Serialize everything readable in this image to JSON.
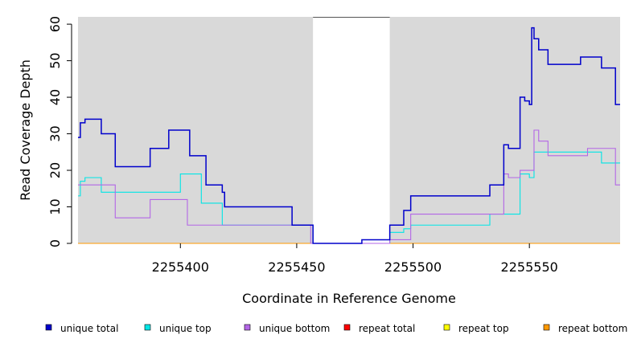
{
  "chart_data": {
    "type": "line",
    "title": "",
    "xlabel": "Coordinate in Reference Genome",
    "ylabel": "Read Coverage Depth",
    "xlim": [
      2255356,
      2255589
    ],
    "ylim": [
      0,
      62
    ],
    "x_ticks": [
      2255400,
      2255450,
      2255500,
      2255550
    ],
    "y_ticks": [
      0,
      10,
      20,
      30,
      40,
      50,
      60
    ],
    "gap_region": [
      2255457,
      2255490
    ],
    "grid": false,
    "legend_position": "bottom",
    "colors": {
      "panel_background": "#d9d9d9",
      "gap_background": "#ffffff"
    },
    "series": [
      {
        "name": "unique total",
        "color": "#0000cc",
        "step": true,
        "x": [
          2255356,
          2255357,
          2255359,
          2255366,
          2255372,
          2255387,
          2255395,
          2255404,
          2255411,
          2255418,
          2255419,
          2255447,
          2255448,
          2255456,
          2255457,
          2255478,
          2255490,
          2255496,
          2255499,
          2255533,
          2255539,
          2255541,
          2255546,
          2255548,
          2255550,
          2255551,
          2255552,
          2255554,
          2255558,
          2255572,
          2255581,
          2255587,
          2255589
        ],
        "y": [
          29,
          33,
          34,
          30,
          21,
          26,
          31,
          24,
          16,
          14,
          10,
          10,
          5,
          5,
          0,
          1,
          5,
          9,
          13,
          16,
          27,
          26,
          40,
          39,
          38,
          59,
          56,
          53,
          49,
          51,
          48,
          38,
          38
        ]
      },
      {
        "name": "unique top",
        "color": "#00e5e5",
        "step": true,
        "x": [
          2255356,
          2255357,
          2255359,
          2255366,
          2255384,
          2255386,
          2255400,
          2255403,
          2255406,
          2255409,
          2255415,
          2255418,
          2255440,
          2255448,
          2255456,
          2255457,
          2255490,
          2255496,
          2255499,
          2255530,
          2255533,
          2255540,
          2255546,
          2255550,
          2255552,
          2255581,
          2255589
        ],
        "y": [
          13,
          17,
          18,
          14,
          14,
          14,
          19,
          19,
          19,
          11,
          11,
          5,
          5,
          5,
          5,
          0,
          3,
          4,
          5,
          5,
          8,
          8,
          19,
          18,
          25,
          22,
          22
        ]
      },
      {
        "name": "unique bottom",
        "color": "#b366e6",
        "step": true,
        "x": [
          2255356,
          2255366,
          2255372,
          2255387,
          2255403,
          2255411,
          2255418,
          2255446,
          2255448,
          2255456,
          2255457,
          2255478,
          2255490,
          2255496,
          2255499,
          2255533,
          2255539,
          2255541,
          2255546,
          2255550,
          2255552,
          2255554,
          2255558,
          2255570,
          2255575,
          2255587,
          2255589
        ],
        "y": [
          16,
          16,
          7,
          12,
          5,
          5,
          5,
          5,
          5,
          0,
          0,
          0,
          1,
          1,
          8,
          8,
          19,
          18,
          20,
          20,
          31,
          28,
          24,
          24,
          26,
          16,
          16
        ]
      },
      {
        "name": "repeat total",
        "color": "#ff0000",
        "step": true,
        "x": [
          2255356,
          2255589
        ],
        "y": [
          0,
          0
        ]
      },
      {
        "name": "repeat top",
        "color": "#ffff00",
        "step": true,
        "x": [
          2255356,
          2255589
        ],
        "y": [
          0,
          0
        ]
      },
      {
        "name": "repeat bottom",
        "color": "#ff9900",
        "step": true,
        "x": [
          2255356,
          2255589
        ],
        "y": [
          0,
          0
        ]
      }
    ]
  }
}
